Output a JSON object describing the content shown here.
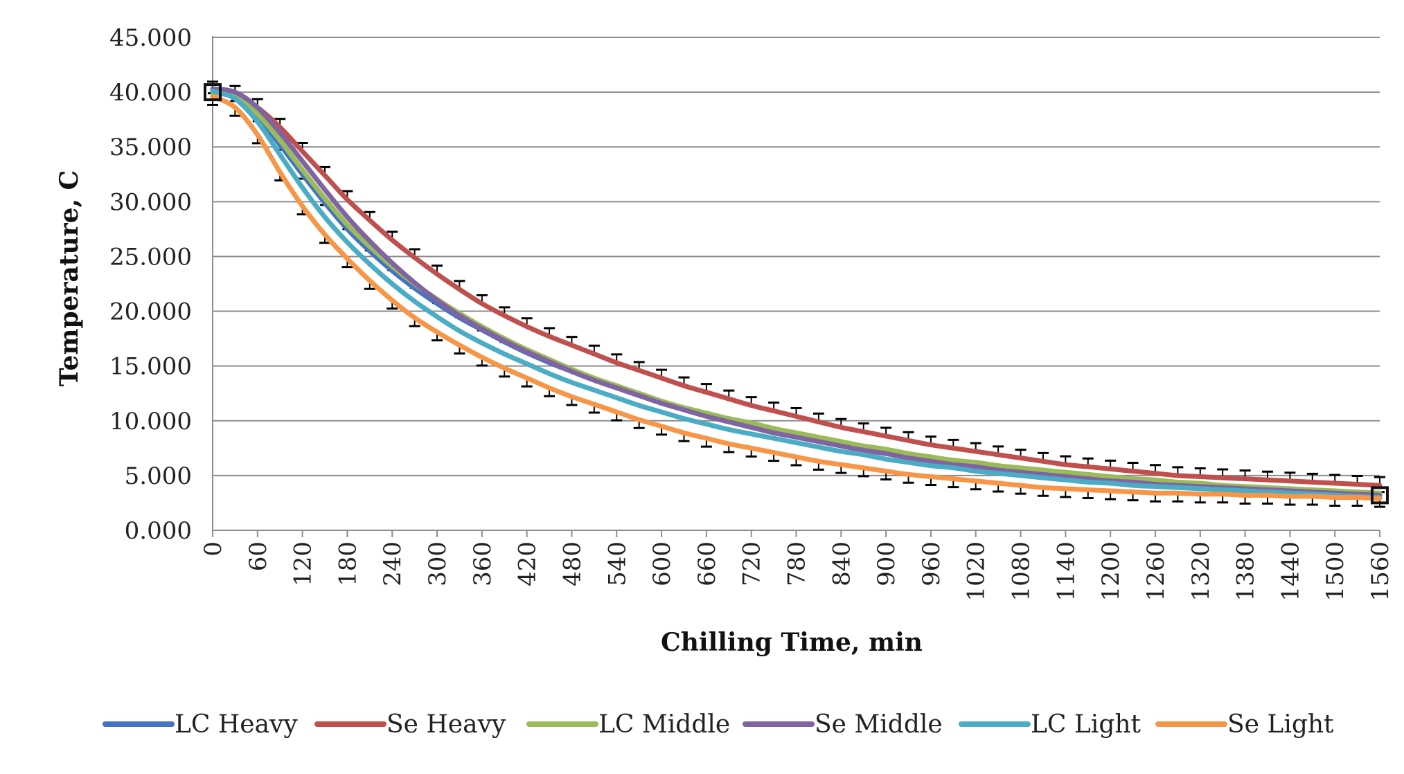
{
  "chart_data": {
    "type": "line",
    "title": "",
    "xlabel": "Chilling Time, min",
    "ylabel": "Temperature, C",
    "x": [
      0,
      30,
      60,
      90,
      120,
      150,
      180,
      210,
      240,
      270,
      300,
      330,
      360,
      390,
      420,
      450,
      480,
      510,
      540,
      570,
      600,
      630,
      660,
      690,
      720,
      750,
      780,
      810,
      840,
      870,
      900,
      930,
      960,
      990,
      1020,
      1050,
      1080,
      1110,
      1140,
      1170,
      1200,
      1230,
      1260,
      1290,
      1320,
      1350,
      1380,
      1410,
      1440,
      1470,
      1500,
      1530,
      1560
    ],
    "x_ticks": [
      "0",
      "60",
      "120",
      "180",
      "240",
      "300",
      "360",
      "420",
      "480",
      "540",
      "600",
      "660",
      "720",
      "780",
      "840",
      "900",
      "960",
      "1020",
      "1080",
      "1140",
      "1200",
      "1260",
      "1320",
      "1380",
      "1440",
      "1500",
      "1560"
    ],
    "y_ticks": [
      "0.000",
      "5.000",
      "10.000",
      "15.000",
      "20.000",
      "25.000",
      "30.000",
      "35.000",
      "40.000",
      "45.000"
    ],
    "ylim": [
      0,
      45
    ],
    "xlim": [
      0,
      1560
    ],
    "grid": true,
    "legend_position": "bottom",
    "error_bars": true,
    "error_bar_color": "#000000",
    "series": [
      {
        "name": "LC Heavy",
        "color": "#4472C4",
        "values": [
          40.0,
          39.5,
          37.8,
          35.2,
          32.5,
          29.9,
          27.5,
          25.5,
          23.7,
          22.1,
          20.7,
          19.4,
          18.3,
          17.2,
          16.2,
          15.3,
          14.5,
          13.7,
          13.0,
          12.3,
          11.7,
          11.1,
          10.5,
          10.0,
          9.5,
          9.0,
          8.6,
          8.2,
          7.8,
          7.4,
          7.0,
          6.7,
          6.4,
          6.1,
          5.8,
          5.6,
          5.3,
          5.1,
          4.9,
          4.7,
          4.5,
          4.3,
          4.2,
          4.1,
          4.0,
          3.9,
          3.8,
          3.7,
          3.6,
          3.5,
          3.5,
          3.4,
          3.4
        ]
      },
      {
        "name": "Se Heavy",
        "color": "#C0504D",
        "values": [
          40.2,
          39.8,
          38.6,
          36.8,
          34.6,
          32.4,
          30.2,
          28.3,
          26.5,
          24.9,
          23.4,
          22.0,
          20.7,
          19.6,
          18.6,
          17.7,
          16.9,
          16.1,
          15.3,
          14.6,
          13.9,
          13.2,
          12.6,
          12.0,
          11.4,
          10.9,
          10.4,
          9.9,
          9.4,
          9.0,
          8.6,
          8.2,
          7.8,
          7.5,
          7.2,
          6.9,
          6.6,
          6.3,
          6.0,
          5.8,
          5.6,
          5.4,
          5.2,
          5.0,
          4.9,
          4.8,
          4.7,
          4.6,
          4.5,
          4.4,
          4.3,
          4.2,
          4.1
        ]
      },
      {
        "name": "LC Middle",
        "color": "#9BBB59",
        "values": [
          40.0,
          39.6,
          38.0,
          35.6,
          32.9,
          30.3,
          27.9,
          25.9,
          24.1,
          22.5,
          21.1,
          19.8,
          18.6,
          17.5,
          16.5,
          15.6,
          14.7,
          13.9,
          13.2,
          12.5,
          11.8,
          11.2,
          10.7,
          10.2,
          9.8,
          9.3,
          8.9,
          8.5,
          8.1,
          7.7,
          7.4,
          7.0,
          6.7,
          6.4,
          6.2,
          5.9,
          5.7,
          5.5,
          5.3,
          5.1,
          4.9,
          4.7,
          4.6,
          4.4,
          4.3,
          4.1,
          4.0,
          3.9,
          3.8,
          3.7,
          3.6,
          3.5,
          3.4
        ]
      },
      {
        "name": "Se Middle",
        "color": "#8064A2",
        "values": [
          40.3,
          40.0,
          38.6,
          36.3,
          33.7,
          31.1,
          28.6,
          26.4,
          24.4,
          22.6,
          21.0,
          19.6,
          18.4,
          17.3,
          16.3,
          15.4,
          14.5,
          13.7,
          13.0,
          12.3,
          11.6,
          11.0,
          10.4,
          9.9,
          9.4,
          8.9,
          8.5,
          8.1,
          7.7,
          7.3,
          7.0,
          6.6,
          6.3,
          6.0,
          5.8,
          5.5,
          5.3,
          5.1,
          4.9,
          4.7,
          4.5,
          4.4,
          4.2,
          4.1,
          4.0,
          3.9,
          3.8,
          3.7,
          3.6,
          3.5,
          3.4,
          3.3,
          3.2
        ]
      },
      {
        "name": "LC Light",
        "color": "#4BACC6",
        "values": [
          40.1,
          39.4,
          37.3,
          34.3,
          31.3,
          28.6,
          26.3,
          24.3,
          22.5,
          20.9,
          19.5,
          18.2,
          17.1,
          16.1,
          15.2,
          14.3,
          13.5,
          12.8,
          12.1,
          11.4,
          10.8,
          10.2,
          9.7,
          9.2,
          8.8,
          8.4,
          8.0,
          7.6,
          7.2,
          6.9,
          6.5,
          6.2,
          5.9,
          5.7,
          5.4,
          5.2,
          5.0,
          4.8,
          4.6,
          4.4,
          4.3,
          4.1,
          4.0,
          3.9,
          3.8,
          3.7,
          3.6,
          3.5,
          3.4,
          3.3,
          3.2,
          3.1,
          3.0
        ]
      },
      {
        "name": "Se Light",
        "color": "#F79646",
        "values": [
          39.6,
          38.6,
          36.1,
          32.7,
          29.6,
          27.0,
          24.8,
          22.8,
          21.0,
          19.4,
          18.1,
          16.9,
          15.8,
          14.8,
          13.9,
          13.0,
          12.2,
          11.5,
          10.8,
          10.1,
          9.5,
          8.9,
          8.4,
          7.9,
          7.5,
          7.1,
          6.7,
          6.3,
          6.0,
          5.7,
          5.4,
          5.1,
          4.9,
          4.7,
          4.5,
          4.3,
          4.1,
          3.9,
          3.8,
          3.7,
          3.6,
          3.5,
          3.4,
          3.4,
          3.3,
          3.3,
          3.2,
          3.2,
          3.1,
          3.1,
          3.0,
          3.0,
          2.9
        ]
      }
    ]
  }
}
